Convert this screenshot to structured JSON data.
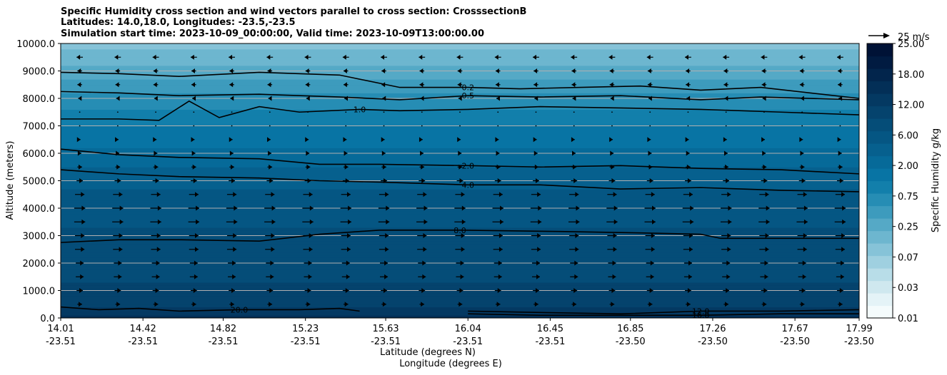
{
  "chart_data": {
    "type": "contourf",
    "title_lines": [
      "Specific Humidity cross section and wind vectors parallel to cross section: CrosssectionB",
      "Latitudes: 14.0,18.0, Longitudes: -23.5,-23.5",
      "Simulation start time: 2023-10-09_00:00:00, Valid time: 2023-10-09T13:00:00.00"
    ],
    "ylabel": "Altitude (meters)",
    "xlabel_lat": "Latitude (degrees N)",
    "xlabel_lon": "Longitude (degrees E)",
    "ylim": [
      0,
      10000
    ],
    "yticks": [
      "0.0",
      "1000.0",
      "2000.0",
      "3000.0",
      "4000.0",
      "5000.0",
      "6000.0",
      "7000.0",
      "8000.0",
      "9000.0",
      "10000.0"
    ],
    "xticks": [
      {
        "lat": "14.01",
        "lon": "-23.51"
      },
      {
        "lat": "14.42",
        "lon": "-23.51"
      },
      {
        "lat": "14.82",
        "lon": "-23.51"
      },
      {
        "lat": "15.23",
        "lon": "-23.51"
      },
      {
        "lat": "15.63",
        "lon": "-23.51"
      },
      {
        "lat": "16.04",
        "lon": "-23.51"
      },
      {
        "lat": "16.45",
        "lon": "-23.51"
      },
      {
        "lat": "16.85",
        "lon": "-23.50"
      },
      {
        "lat": "17.26",
        "lon": "-23.50"
      },
      {
        "lat": "17.67",
        "lon": "-23.50"
      },
      {
        "lat": "17.99",
        "lon": "-23.50"
      }
    ],
    "humidity_profile": [
      {
        "alt": 0,
        "q": 14.0
      },
      {
        "alt": 500,
        "q": 11.0
      },
      {
        "alt": 1000,
        "q": 9.0
      },
      {
        "alt": 2000,
        "q": 8.0
      },
      {
        "alt": 3000,
        "q": 7.0
      },
      {
        "alt": 4000,
        "q": 5.5
      },
      {
        "alt": 5000,
        "q": 4.0
      },
      {
        "alt": 6000,
        "q": 2.0
      },
      {
        "alt": 7000,
        "q": 1.2
      },
      {
        "alt": 8000,
        "q": 0.6
      },
      {
        "alt": 9000,
        "q": 0.25
      },
      {
        "alt": 10000,
        "q": 0.1
      }
    ],
    "contour_lines": [
      {
        "level": "0.2",
        "label": "0.2",
        "x": [
          14.01,
          14.3,
          14.6,
          15.0,
          15.4,
          15.7,
          16.04,
          16.3,
          16.6,
          16.9,
          17.2,
          17.5,
          17.99
        ],
        "alt": [
          8950,
          8900,
          8800,
          8950,
          8850,
          8400,
          8400,
          8350,
          8400,
          8450,
          8300,
          8400,
          8000
        ]
      },
      {
        "level": "0.5",
        "label": "0.5",
        "x": [
          14.01,
          14.3,
          14.6,
          15.0,
          15.4,
          15.7,
          16.04,
          16.4,
          16.8,
          17.2,
          17.5,
          17.99
        ],
        "alt": [
          8250,
          8200,
          8100,
          8150,
          8050,
          7950,
          8100,
          8050,
          8100,
          7950,
          8050,
          7950
        ]
      },
      {
        "level": "1.0",
        "label": "1.0",
        "x": [
          14.01,
          14.3,
          14.5,
          14.65,
          14.8,
          15.0,
          15.2,
          15.5,
          15.7,
          16.04,
          16.4,
          16.8,
          17.2,
          17.6,
          17.99
        ],
        "alt": [
          7250,
          7250,
          7200,
          7900,
          7300,
          7700,
          7500,
          7600,
          7550,
          7600,
          7700,
          7650,
          7600,
          7500,
          7400
        ]
      },
      {
        "level": "2.0",
        "label": "2.0",
        "x": [
          14.01,
          14.3,
          14.6,
          15.0,
          15.3,
          15.6,
          16.04,
          16.4,
          16.8,
          17.2,
          17.6,
          17.99
        ],
        "alt": [
          6150,
          5950,
          5850,
          5800,
          5600,
          5600,
          5550,
          5500,
          5550,
          5450,
          5400,
          5250
        ]
      },
      {
        "level": "4.0",
        "label": "4.0",
        "x": [
          14.01,
          14.3,
          14.6,
          15.0,
          15.3,
          15.6,
          16.04,
          16.4,
          16.8,
          17.2,
          17.6,
          17.99
        ],
        "alt": [
          5400,
          5250,
          5150,
          5100,
          5000,
          4950,
          4850,
          4850,
          4700,
          4750,
          4650,
          4600
        ]
      },
      {
        "level": "8.0",
        "label": "8.0",
        "x": [
          14.01,
          14.3,
          14.6,
          15.0,
          15.3,
          15.6,
          16.0,
          16.5,
          16.9,
          17.2,
          17.3,
          17.99
        ],
        "alt": [
          2750,
          2850,
          2850,
          2800,
          3050,
          3200,
          3200,
          3150,
          3100,
          3050,
          2900,
          2900
        ]
      },
      {
        "level": "12.0",
        "label": "12.0",
        "x": [
          16.04,
          16.4,
          16.8,
          17.2,
          17.6,
          17.99
        ],
        "alt": [
          250,
          200,
          150,
          250,
          250,
          300
        ]
      },
      {
        "level": "16.0",
        "label": "16.0",
        "x": [
          16.04,
          16.4,
          16.8,
          17.2,
          17.6,
          17.99
        ],
        "alt": [
          150,
          100,
          100,
          100,
          150,
          150
        ]
      },
      {
        "level": "20.0",
        "label": "20.0",
        "x": [
          14.01,
          14.2,
          14.4,
          14.6,
          14.9,
          15.2,
          15.4,
          15.5
        ],
        "alt": [
          400,
          300,
          350,
          250,
          300,
          300,
          350,
          250
        ]
      }
    ],
    "wind_rows": [
      {
        "alt": 9500,
        "dir": -1,
        "speed": 4
      },
      {
        "alt": 9000,
        "dir": -1,
        "speed": 3
      },
      {
        "alt": 8500,
        "dir": -1,
        "speed": 3
      },
      {
        "alt": 8000,
        "dir": -1,
        "speed": 2
      },
      {
        "alt": 7500,
        "dir": 0,
        "speed": 1
      },
      {
        "alt": 7000,
        "dir": 0,
        "speed": 1
      },
      {
        "alt": 6500,
        "dir": 1,
        "speed": 1
      },
      {
        "alt": 6000,
        "dir": 1,
        "speed": 2
      },
      {
        "alt": 5500,
        "dir": 1,
        "speed": 3
      },
      {
        "alt": 5000,
        "dir": 1,
        "speed": 4
      },
      {
        "alt": 4500,
        "dir": 1,
        "speed": 6
      },
      {
        "alt": 4000,
        "dir": 1,
        "speed": 7
      },
      {
        "alt": 3500,
        "dir": 1,
        "speed": 7
      },
      {
        "alt": 3000,
        "dir": 1,
        "speed": 6
      },
      {
        "alt": 2500,
        "dir": 1,
        "speed": 6
      },
      {
        "alt": 2000,
        "dir": 1,
        "speed": 5
      },
      {
        "alt": 1500,
        "dir": 1,
        "speed": 5
      },
      {
        "alt": 1000,
        "dir": 1,
        "speed": 4
      },
      {
        "alt": 500,
        "dir": 1,
        "speed": 3
      }
    ],
    "colorbar": {
      "label": "Specific Humidity g/kg",
      "ticks": [
        "0.01",
        "0.03",
        "0.07",
        "0.25",
        "0.75",
        "2.00",
        "6.00",
        "12.00",
        "18.00",
        "25.00"
      ],
      "colors": [
        "#f4fbfc",
        "#e4f3f7",
        "#cfe8ef",
        "#b8dde8",
        "#9fd0e0",
        "#86c3d8",
        "#6db6cf",
        "#55a9c6",
        "#3d9bbd",
        "#268db4",
        "#127fab",
        "#0874a4",
        "#066a99",
        "#06608e",
        "#055683",
        "#054d78",
        "#05436d",
        "#043962",
        "#032f57",
        "#02254c",
        "#011b41",
        "#001236"
      ]
    },
    "quiver_key": {
      "label": "25 m/s"
    }
  }
}
